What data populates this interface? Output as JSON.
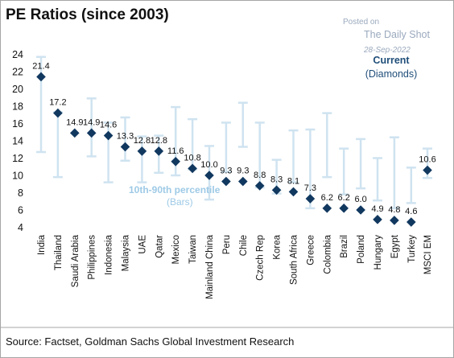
{
  "watermark": {
    "posted_on": "Posted on",
    "publisher": "The Daily Shot",
    "date": "28-Sep-2022"
  },
  "source": "Source: Factset, Goldman Sachs Global Investment Research",
  "colors": {
    "marker": "#11385f",
    "bar": "#cfe3f0",
    "current_label": "#1f4e79",
    "range_label": "#9ecae6",
    "frame": "#a6a6a6"
  },
  "chart_data": {
    "type": "scatter",
    "title": "PE Ratios (since 2003)",
    "categories": [
      "India",
      "Thailand",
      "Saudi Arabia",
      "Philippines",
      "Indonesia",
      "Malaysia",
      "UAE",
      "Qatar",
      "Mexico",
      "Taiwan",
      "Mainland China",
      "Peru",
      "Chile",
      "Czech Rep",
      "Korea",
      "South Africa",
      "Greece",
      "Colombia",
      "Brazil",
      "Poland",
      "Hungary",
      "Egypt",
      "Turkey",
      "MSCI EM"
    ],
    "current": [
      21.4,
      17.2,
      14.9,
      14.9,
      14.6,
      13.3,
      12.8,
      12.8,
      11.6,
      10.8,
      10.0,
      9.3,
      9.3,
      8.8,
      8.3,
      8.1,
      7.3,
      6.2,
      6.2,
      6.0,
      4.9,
      4.8,
      4.6,
      10.6
    ],
    "current_labels": [
      "21.4",
      "17.2",
      "14.9",
      "14.9",
      "14.6",
      "13.3",
      "12.8",
      "12.8",
      "11.6",
      "10.8",
      "10.0",
      "9.3",
      "9.3",
      "8.8",
      "8.3",
      "8.1",
      "7.3",
      "6.2",
      "6.2",
      "6.0",
      "4.9",
      "4.8",
      "4.6",
      "10.6"
    ],
    "p10": [
      12.7,
      9.8,
      null,
      12.2,
      9.2,
      11.7,
      9.2,
      10.3,
      10.0,
      10.7,
      7.2,
      10.4,
      13.3,
      8.6,
      7.9,
      9.2,
      6.2,
      9.8,
      7.8,
      8.5,
      7.1,
      6.2,
      6.8,
      9.7
    ],
    "p90": [
      23.7,
      17.3,
      null,
      18.9,
      16.1,
      16.7,
      14.5,
      14.6,
      17.9,
      16.5,
      13.4,
      16.1,
      18.4,
      16.1,
      11.8,
      15.2,
      15.3,
      17.2,
      13.1,
      14.2,
      12.0,
      14.4,
      10.9,
      13.1
    ],
    "yticks": [
      4,
      6,
      8,
      10,
      12,
      14,
      16,
      18,
      20,
      22,
      24
    ],
    "ylim": [
      4,
      24
    ],
    "legend_current": [
      "Current",
      "(Diamonds)"
    ],
    "legend_range": [
      "10th-90th percentile",
      "(Bars)"
    ],
    "grid": false
  }
}
